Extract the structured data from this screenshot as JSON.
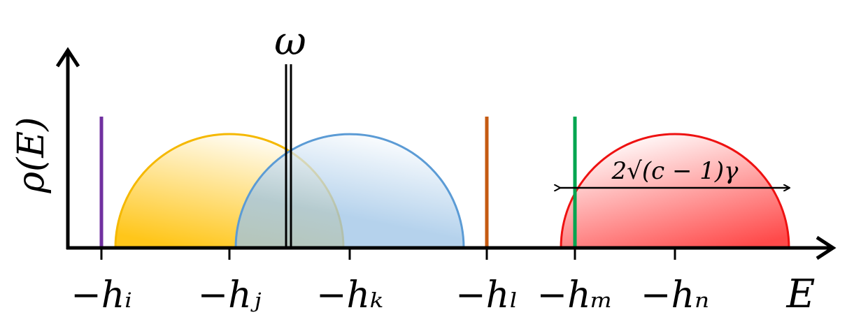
{
  "axes": {
    "y_label": "ρ(E)",
    "x_label": "E"
  },
  "frequency_label": "ω",
  "ticks": [
    "−hᵢ",
    "−hⱼ",
    "−hₖ",
    "−hₗ",
    "−hₘ",
    "−hₙ"
  ],
  "width_annotation": "2√(c − 1)γ"
}
